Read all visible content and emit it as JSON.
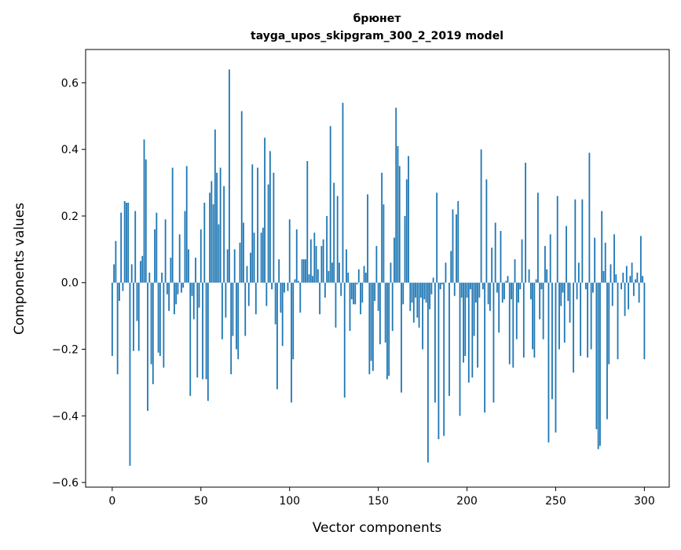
{
  "chart_data": {
    "type": "bar",
    "title_line1": "брюнет",
    "title_line2": "tayga_upos_skipgram_300_2_2019 model",
    "xlabel": "Vector components",
    "ylabel": "Components values",
    "xlim": [
      -15,
      314
    ],
    "ylim": [
      -0.614,
      0.7
    ],
    "xticks": [
      0,
      50,
      100,
      150,
      200,
      250,
      300
    ],
    "xtick_labels": [
      "0",
      "50",
      "100",
      "150",
      "200",
      "250",
      "300"
    ],
    "yticks": [
      -0.6,
      -0.4,
      -0.2,
      0.0,
      0.2,
      0.4,
      0.6
    ],
    "ytick_labels": [
      "−0.6",
      "−0.4",
      "−0.2",
      "0.0",
      "0.2",
      "0.4",
      "0.6"
    ],
    "grid": false,
    "color": "#1f77b4",
    "values": [
      -0.22,
      0.055,
      0.125,
      -0.275,
      -0.055,
      0.21,
      -0.025,
      0.245,
      0.24,
      0.24,
      -0.55,
      0.055,
      -0.205,
      0.215,
      -0.115,
      -0.205,
      0.065,
      0.08,
      0.43,
      0.37,
      -0.385,
      0.03,
      -0.245,
      -0.305,
      0.16,
      0.21,
      -0.21,
      -0.22,
      0.03,
      -0.255,
      0.19,
      -0.035,
      -0.085,
      0.075,
      0.345,
      -0.095,
      -0.065,
      -0.035,
      0.145,
      -0.03,
      -0.015,
      0.215,
      0.35,
      0.1,
      -0.34,
      -0.04,
      -0.11,
      0.075,
      -0.285,
      -0.075,
      0.16,
      -0.29,
      0.24,
      -0.29,
      -0.355,
      0.27,
      0.305,
      0.235,
      0.46,
      0.33,
      0.175,
      0.345,
      -0.17,
      0.29,
      -0.105,
      0.1,
      0.64,
      -0.275,
      -0.16,
      0.1,
      -0.2,
      -0.23,
      0.12,
      0.515,
      0.18,
      -0.16,
      0.05,
      -0.07,
      0.09,
      0.355,
      0.15,
      -0.095,
      0.345,
      0.0,
      0.15,
      0.165,
      0.435,
      -0.07,
      0.295,
      0.395,
      -0.02,
      0.33,
      -0.125,
      -0.32,
      0.07,
      -0.09,
      -0.19,
      -0.03,
      0.0,
      -0.025,
      0.19,
      -0.36,
      -0.23,
      0.01,
      0.16,
      0.005,
      -0.09,
      0.07,
      0.07,
      0.07,
      0.365,
      0.025,
      0.13,
      0.02,
      0.15,
      0.11,
      0.04,
      -0.095,
      0.11,
      0.13,
      -0.045,
      0.2,
      0.035,
      0.47,
      0.06,
      0.3,
      -0.135,
      0.26,
      0.06,
      -0.04,
      0.54,
      -0.345,
      0.1,
      0.03,
      -0.145,
      -0.05,
      -0.065,
      -0.065,
      -0.005,
      0.04,
      -0.095,
      -0.06,
      0.05,
      0.03,
      0.265,
      -0.275,
      -0.235,
      -0.265,
      -0.055,
      0.11,
      -0.085,
      -0.185,
      0.33,
      0.235,
      -0.18,
      -0.29,
      -0.28,
      0.06,
      -0.145,
      0.135,
      0.525,
      0.41,
      0.35,
      -0.33,
      -0.065,
      0.2,
      0.31,
      0.38,
      -0.085,
      -0.06,
      -0.12,
      -0.045,
      -0.105,
      -0.135,
      -0.045,
      -0.2,
      -0.05,
      -0.06,
      -0.54,
      -0.08,
      -0.035,
      0.015,
      -0.36,
      0.27,
      -0.47,
      -0.02,
      -0.005,
      -0.46,
      0.06,
      0.0,
      -0.34,
      0.095,
      0.22,
      -0.04,
      0.205,
      0.245,
      -0.4,
      -0.045,
      -0.24,
      -0.22,
      -0.045,
      -0.3,
      -0.02,
      -0.285,
      -0.16,
      -0.06,
      -0.255,
      -0.045,
      0.4,
      -0.02,
      -0.39,
      0.31,
      -0.065,
      -0.085,
      0.105,
      -0.36,
      0.18,
      -0.03,
      -0.15,
      0.155,
      -0.06,
      -0.05,
      0.005,
      0.02,
      -0.245,
      -0.05,
      -0.255,
      0.07,
      -0.17,
      -0.06,
      -0.02,
      0.13,
      -0.225,
      0.36,
      0.0,
      0.04,
      -0.05,
      -0.2,
      -0.225,
      0.01,
      0.27,
      -0.11,
      -0.02,
      -0.17,
      0.11,
      0.04,
      -0.48,
      0.145,
      -0.35,
      0.0,
      -0.45,
      0.26,
      -0.2,
      -0.07,
      -0.03,
      -0.18,
      0.17,
      -0.055,
      -0.12,
      0.0,
      -0.27,
      0.25,
      -0.05,
      0.06,
      -0.22,
      0.25,
      0.0,
      -0.02,
      -0.225,
      0.39,
      -0.2,
      -0.03,
      0.135,
      -0.44,
      -0.5,
      -0.49,
      0.215,
      0.035,
      0.12,
      -0.41,
      -0.245,
      0.055,
      -0.07,
      0.145,
      0.025,
      -0.23,
      0.0,
      -0.02,
      0.03,
      -0.1,
      0.05,
      -0.08,
      0.02,
      0.06,
      -0.04,
      0.01,
      0.03,
      -0.06,
      0.14,
      0.02,
      -0.23
    ]
  }
}
